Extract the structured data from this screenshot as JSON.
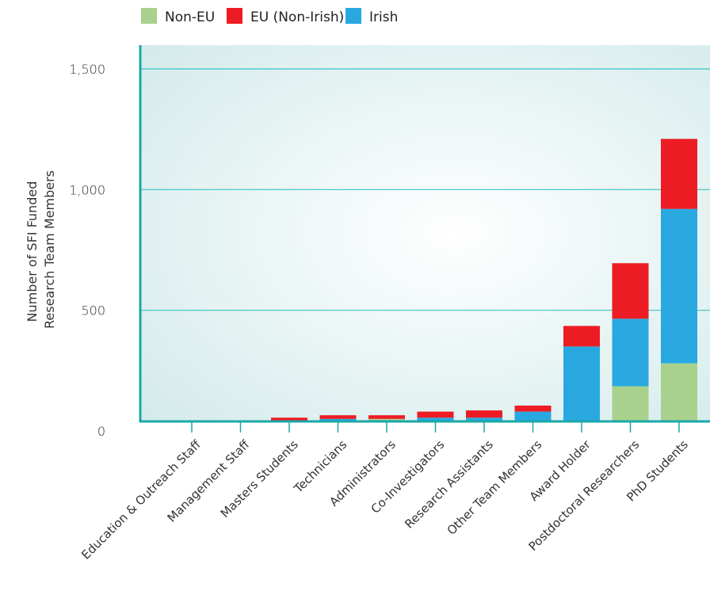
{
  "chart_data": {
    "type": "bar",
    "stacked": true,
    "ylabel_lines": [
      "Number of SFI Funded",
      "Research Team Members"
    ],
    "ylim": [
      0,
      1500
    ],
    "yticks": [
      0,
      500,
      1000,
      1500
    ],
    "ytick_labels": [
      "0",
      "500",
      "1,000",
      "1,500"
    ],
    "grid": true,
    "legend_position": "top",
    "categories": [
      "Education & Outreach Staff",
      "Management Staff",
      "Masters Students",
      "Technicians",
      "Administrators",
      "Co-Investigators",
      "Research Assistants",
      "Other Team Members",
      "Award Holder",
      "Postdoctoral Researchers",
      "PhD Students"
    ],
    "series": [
      {
        "name": "Non-EU",
        "color": "#a9d18e",
        "values": [
          15,
          35,
          5,
          0,
          50,
          0,
          5,
          10,
          35,
          185,
          280
        ]
      },
      {
        "name": "Irish",
        "color": "#29a8e0",
        "values": [
          0,
          0,
          35,
          50,
          0,
          55,
          50,
          70,
          315,
          280,
          640
        ]
      },
      {
        "name": "EU (Non-Irish)",
        "color": "#ed1c24",
        "values": [
          0,
          0,
          15,
          15,
          15,
          25,
          30,
          25,
          85,
          230,
          290
        ]
      }
    ],
    "legend_order": [
      "Non-EU",
      "EU (Non-Irish)",
      "Irish"
    ]
  }
}
